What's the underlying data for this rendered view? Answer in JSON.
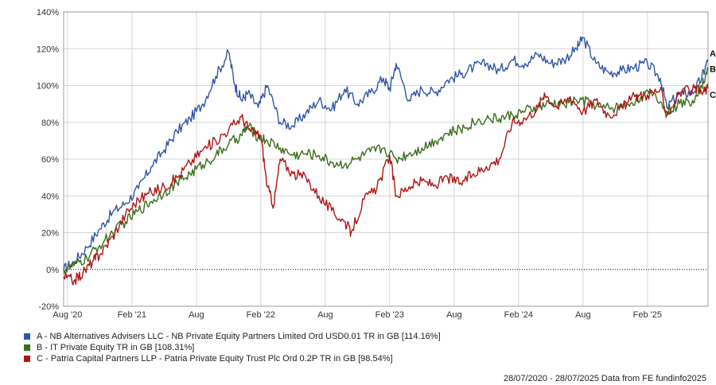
{
  "chart_data": {
    "type": "line",
    "ylim": [
      -20,
      140
    ],
    "y_ticks": [
      "140%",
      "120%",
      "100%",
      "80%",
      "60%",
      "40%",
      "20%",
      "0%",
      "-20%"
    ],
    "x_ticks": [
      "Aug '20",
      "Feb '21",
      "Aug",
      "Feb '22",
      "Aug",
      "Feb '23",
      "Aug",
      "Feb '24",
      "Aug",
      "Feb '25"
    ],
    "x_tick_positions": [
      2020.6,
      2021.1,
      2021.6,
      2022.1,
      2022.6,
      2023.1,
      2023.6,
      2024.1,
      2024.6,
      2025.1
    ],
    "xlim": [
      2020.57,
      2025.57
    ],
    "grid": true,
    "series": [
      {
        "name": "A - NB Alternatives Advisers LLC - NB Private Equity Partners Limited Ord USD0.01 TR in GB [114.16%]",
        "end_label": "A",
        "color": "#2f56a8",
        "points": [
          [
            2020.57,
            0
          ],
          [
            2020.65,
            4
          ],
          [
            2020.75,
            12
          ],
          [
            2020.85,
            22
          ],
          [
            2020.95,
            31
          ],
          [
            2021.05,
            36
          ],
          [
            2021.15,
            44
          ],
          [
            2021.25,
            56
          ],
          [
            2021.35,
            65
          ],
          [
            2021.45,
            75
          ],
          [
            2021.55,
            82
          ],
          [
            2021.65,
            90
          ],
          [
            2021.75,
            105
          ],
          [
            2021.85,
            118
          ],
          [
            2021.9,
            100
          ],
          [
            2021.95,
            92
          ],
          [
            2022.0,
            96
          ],
          [
            2022.08,
            88
          ],
          [
            2022.15,
            100
          ],
          [
            2022.25,
            80
          ],
          [
            2022.35,
            78
          ],
          [
            2022.45,
            85
          ],
          [
            2022.55,
            92
          ],
          [
            2022.65,
            87
          ],
          [
            2022.75,
            98
          ],
          [
            2022.85,
            90
          ],
          [
            2022.95,
            96
          ],
          [
            2023.05,
            104
          ],
          [
            2023.1,
            98
          ],
          [
            2023.15,
            112
          ],
          [
            2023.25,
            92
          ],
          [
            2023.35,
            98
          ],
          [
            2023.45,
            96
          ],
          [
            2023.55,
            103
          ],
          [
            2023.65,
            106
          ],
          [
            2023.75,
            110
          ],
          [
            2023.85,
            112
          ],
          [
            2023.95,
            108
          ],
          [
            2024.05,
            114
          ],
          [
            2024.15,
            112
          ],
          [
            2024.25,
            117
          ],
          [
            2024.35,
            112
          ],
          [
            2024.45,
            114
          ],
          [
            2024.55,
            120
          ],
          [
            2024.6,
            126
          ],
          [
            2024.7,
            112
          ],
          [
            2024.8,
            107
          ],
          [
            2024.9,
            108
          ],
          [
            2025.0,
            110
          ],
          [
            2025.1,
            112
          ],
          [
            2025.2,
            104
          ],
          [
            2025.25,
            88
          ],
          [
            2025.35,
            96
          ],
          [
            2025.45,
            96
          ],
          [
            2025.52,
            104
          ],
          [
            2025.57,
            114.16
          ]
        ]
      },
      {
        "name": "B - IT Private Equity TR in GB [108.31%]",
        "end_label": "B",
        "color": "#3a6e1a",
        "points": [
          [
            2020.57,
            0
          ],
          [
            2020.65,
            2
          ],
          [
            2020.75,
            6
          ],
          [
            2020.85,
            13
          ],
          [
            2020.95,
            20
          ],
          [
            2021.05,
            26
          ],
          [
            2021.15,
            32
          ],
          [
            2021.25,
            37
          ],
          [
            2021.35,
            42
          ],
          [
            2021.45,
            47
          ],
          [
            2021.55,
            52
          ],
          [
            2021.65,
            57
          ],
          [
            2021.75,
            62
          ],
          [
            2021.85,
            68
          ],
          [
            2021.95,
            73
          ],
          [
            2022.0,
            78
          ],
          [
            2022.08,
            72
          ],
          [
            2022.15,
            70
          ],
          [
            2022.25,
            66
          ],
          [
            2022.35,
            62
          ],
          [
            2022.45,
            63
          ],
          [
            2022.55,
            62
          ],
          [
            2022.65,
            58
          ],
          [
            2022.75,
            57
          ],
          [
            2022.85,
            60
          ],
          [
            2022.95,
            64
          ],
          [
            2023.05,
            66
          ],
          [
            2023.15,
            60
          ],
          [
            2023.25,
            63
          ],
          [
            2023.35,
            66
          ],
          [
            2023.45,
            70
          ],
          [
            2023.55,
            74
          ],
          [
            2023.65,
            76
          ],
          [
            2023.75,
            80
          ],
          [
            2023.85,
            82
          ],
          [
            2023.95,
            82
          ],
          [
            2024.05,
            84
          ],
          [
            2024.15,
            86
          ],
          [
            2024.25,
            88
          ],
          [
            2024.35,
            90
          ],
          [
            2024.45,
            90
          ],
          [
            2024.55,
            92
          ],
          [
            2024.65,
            91
          ],
          [
            2024.75,
            88
          ],
          [
            2024.85,
            88
          ],
          [
            2024.95,
            90
          ],
          [
            2025.05,
            94
          ],
          [
            2025.15,
            96
          ],
          [
            2025.25,
            86
          ],
          [
            2025.35,
            90
          ],
          [
            2025.45,
            92
          ],
          [
            2025.52,
            100
          ],
          [
            2025.57,
            108.31
          ]
        ]
      },
      {
        "name": "C - Patria Capital Partners LLP - Patria Private Equity Trust Plc Ord 0.2P TR in GB [98.54%]",
        "end_label": "C",
        "color": "#b01515",
        "points": [
          [
            2020.57,
            -4
          ],
          [
            2020.65,
            -6
          ],
          [
            2020.72,
            -2
          ],
          [
            2020.8,
            5
          ],
          [
            2020.85,
            8
          ],
          [
            2020.95,
            18
          ],
          [
            2021.05,
            30
          ],
          [
            2021.15,
            38
          ],
          [
            2021.25,
            42
          ],
          [
            2021.35,
            45
          ],
          [
            2021.45,
            50
          ],
          [
            2021.55,
            58
          ],
          [
            2021.65,
            65
          ],
          [
            2021.75,
            70
          ],
          [
            2021.85,
            76
          ],
          [
            2021.95,
            83
          ],
          [
            2022.02,
            75
          ],
          [
            2022.1,
            73
          ],
          [
            2022.15,
            45
          ],
          [
            2022.2,
            35
          ],
          [
            2022.25,
            60
          ],
          [
            2022.35,
            52
          ],
          [
            2022.45,
            50
          ],
          [
            2022.55,
            40
          ],
          [
            2022.65,
            32
          ],
          [
            2022.75,
            26
          ],
          [
            2022.8,
            20
          ],
          [
            2022.9,
            38
          ],
          [
            2023.0,
            44
          ],
          [
            2023.1,
            62
          ],
          [
            2023.15,
            40
          ],
          [
            2023.25,
            45
          ],
          [
            2023.35,
            48
          ],
          [
            2023.45,
            46
          ],
          [
            2023.55,
            50
          ],
          [
            2023.65,
            47
          ],
          [
            2023.75,
            52
          ],
          [
            2023.85,
            56
          ],
          [
            2023.95,
            60
          ],
          [
            2024.05,
            80
          ],
          [
            2024.15,
            82
          ],
          [
            2024.25,
            88
          ],
          [
            2024.3,
            96
          ],
          [
            2024.4,
            88
          ],
          [
            2024.5,
            94
          ],
          [
            2024.6,
            86
          ],
          [
            2024.7,
            92
          ],
          [
            2024.8,
            84
          ],
          [
            2024.9,
            88
          ],
          [
            2025.0,
            94
          ],
          [
            2025.1,
            95
          ],
          [
            2025.2,
            98
          ],
          [
            2025.25,
            84
          ],
          [
            2025.35,
            96
          ],
          [
            2025.45,
            98
          ],
          [
            2025.52,
            96
          ],
          [
            2025.57,
            98.54
          ]
        ]
      }
    ],
    "footer": "28/07/2020 - 28/07/2025 Data from FE fundinfo2025"
  }
}
